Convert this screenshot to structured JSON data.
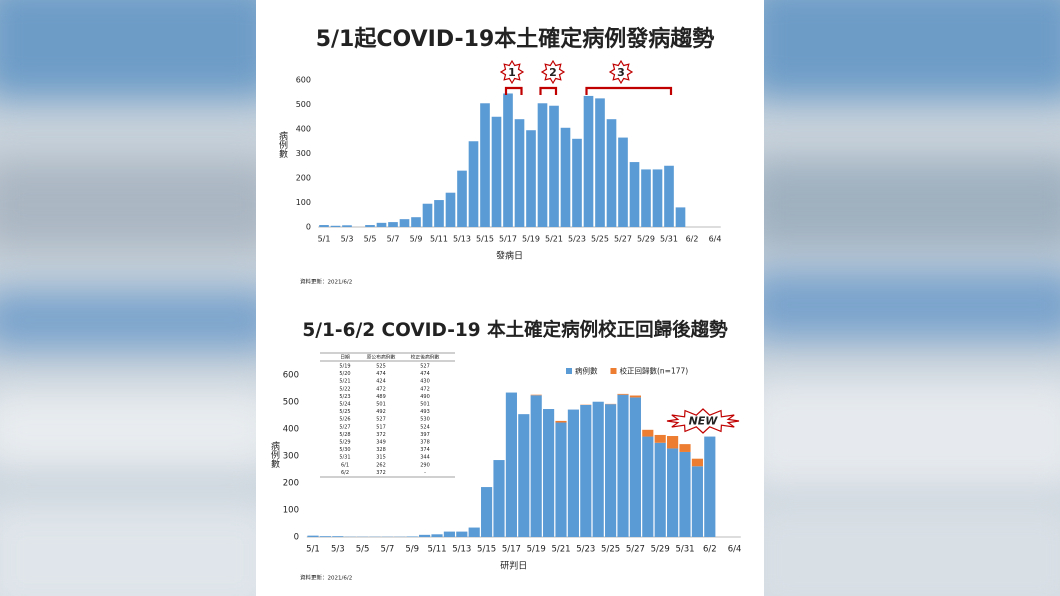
{
  "chart_data": [
    {
      "type": "bar",
      "title": "5/1起COVID-19本土確定病例發病趨勢",
      "xlabel": "發病日",
      "ylabel": "病例數",
      "note": "資料更新：2021/6/2",
      "annotations": [
        "1",
        "2",
        "3"
      ],
      "categories": [
        "5/1",
        null,
        "5/3",
        null,
        "5/5",
        null,
        "5/7",
        null,
        "5/9",
        null,
        "5/11",
        null,
        "5/13",
        null,
        "5/15",
        null,
        "5/17",
        null,
        "5/19",
        null,
        "5/21",
        null,
        "5/23",
        null,
        "5/25",
        null,
        "5/27",
        null,
        "5/29",
        null,
        "5/31",
        null,
        "6/2",
        null,
        "6/4"
      ],
      "values": [
        8,
        5,
        7,
        0,
        8,
        17,
        20,
        32,
        40,
        95,
        110,
        140,
        230,
        350,
        505,
        450,
        545,
        440,
        395,
        505,
        495,
        405,
        360,
        535,
        525,
        440,
        365,
        265,
        235,
        235,
        250,
        80,
        null,
        null,
        null
      ],
      "color": "#5b9bd5",
      "ylim": [
        0,
        600
      ],
      "yticks": [
        0,
        100,
        200,
        300,
        400,
        500,
        600
      ],
      "grid": false
    },
    {
      "type": "stacked_bar",
      "title": "5/1-6/2 COVID-19 本土確定病例校正回歸後趨勢",
      "xlabel": "研判日",
      "ylabel": "病例數",
      "note": "資料更新：2021/6/2",
      "annotations": [
        "NEW"
      ],
      "legend": "top-right",
      "categories": [
        "5/1",
        null,
        "5/3",
        null,
        "5/5",
        null,
        "5/7",
        null,
        "5/9",
        null,
        "5/11",
        null,
        "5/13",
        null,
        "5/15",
        null,
        "5/17",
        null,
        "5/19",
        null,
        "5/21",
        null,
        "5/23",
        null,
        "5/25",
        null,
        "5/27",
        null,
        "5/29",
        null,
        "5/31",
        null,
        "6/2",
        null,
        "6/4"
      ],
      "series": [
        {
          "name": "病例數",
          "color": "#5b9bd5",
          "values": [
            5,
            3,
            3,
            1,
            1,
            1,
            1,
            1,
            2,
            8,
            10,
            20,
            20,
            35,
            185,
            285,
            535,
            455,
            525,
            474,
            424,
            472,
            489,
            501,
            492,
            527,
            517,
            372,
            349,
            328,
            315,
            262,
            372,
            null,
            null
          ]
        },
        {
          "name": "校正回歸數(n=177)",
          "color": "#ed7d31",
          "values": [
            0,
            0,
            0,
            0,
            0,
            0,
            0,
            0,
            0,
            0,
            0,
            0,
            0,
            0,
            0,
            0,
            0,
            0,
            2,
            0,
            6,
            0,
            1,
            0,
            1,
            3,
            7,
            25,
            29,
            46,
            29,
            28,
            0,
            null,
            null
          ]
        }
      ],
      "table": {
        "columns": [
          "日期",
          "原公布病例數",
          "校正後病例數"
        ],
        "rows": [
          [
            "5/19",
            "525",
            "527"
          ],
          [
            "5/20",
            "474",
            "474"
          ],
          [
            "5/21",
            "424",
            "430"
          ],
          [
            "5/22",
            "472",
            "472"
          ],
          [
            "5/23",
            "489",
            "490"
          ],
          [
            "5/24",
            "501",
            "501"
          ],
          [
            "5/25",
            "492",
            "493"
          ],
          [
            "5/26",
            "527",
            "530"
          ],
          [
            "5/27",
            "517",
            "524"
          ],
          [
            "5/28",
            "372",
            "397"
          ],
          [
            "5/29",
            "349",
            "378"
          ],
          [
            "5/30",
            "328",
            "374"
          ],
          [
            "5/31",
            "315",
            "344"
          ],
          [
            "6/1",
            "262",
            "290"
          ],
          [
            "6/2",
            "372",
            "-"
          ]
        ]
      },
      "ylim": [
        0,
        600
      ],
      "yticks": [
        0,
        100,
        200,
        300,
        400,
        500,
        600
      ],
      "grid": false
    }
  ]
}
